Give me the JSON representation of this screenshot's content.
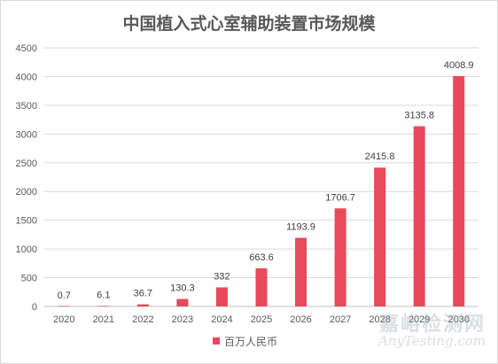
{
  "chart_data": {
    "type": "bar",
    "title": "中国植入式心室辅助装置市场规模",
    "categories": [
      "2020",
      "2021",
      "2022",
      "2023",
      "2024",
      "2025",
      "2026",
      "2027",
      "2028",
      "2029",
      "2030"
    ],
    "series": [
      {
        "name": "百万人民币",
        "values": [
          0.7,
          6.1,
          36.7,
          130.3,
          332,
          663.6,
          1193.9,
          1706.7,
          2415.8,
          3135.8,
          4008.9
        ]
      }
    ],
    "data_labels": [
      "0.7",
      "6.1",
      "36.7",
      "130.3",
      "332",
      "663.6",
      "1193.9",
      "1706.7",
      "2415.8",
      "3135.8",
      "4008.9"
    ],
    "ylim": [
      0,
      4500
    ],
    "yticks": [
      0,
      500,
      1000,
      1500,
      2000,
      2500,
      3000,
      3500,
      4000,
      4500
    ],
    "grid": true,
    "legend_position": "bottom",
    "bar_color": "#e8495b"
  },
  "watermark": {
    "cn": "嘉峪检测网",
    "en": "AnyTesting.com"
  }
}
